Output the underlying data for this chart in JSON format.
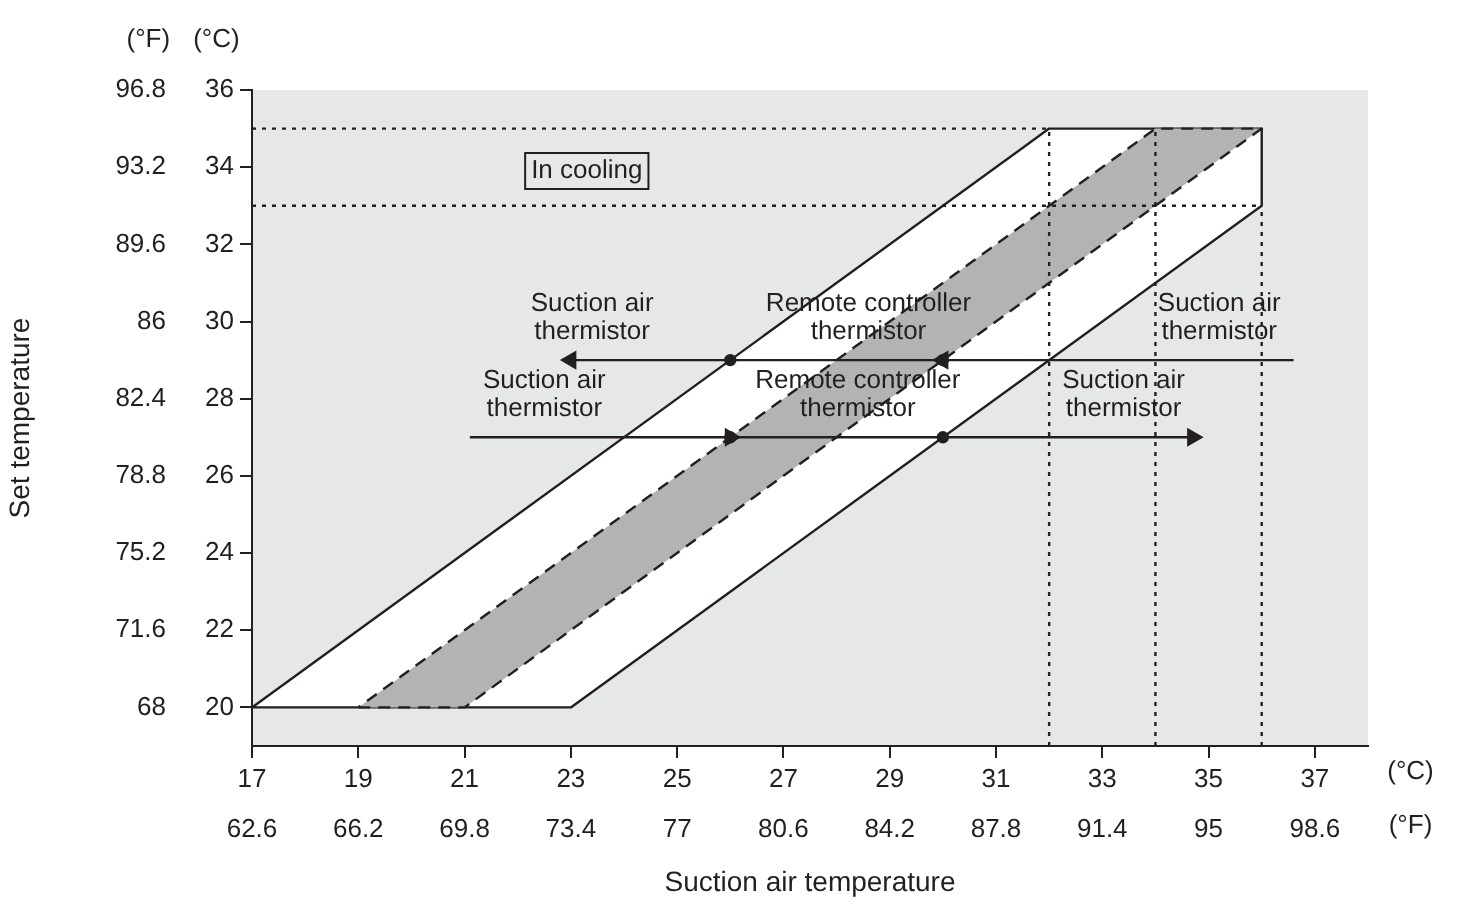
{
  "chart_data": {
    "type": "line",
    "xlabel": "Suction air temperature",
    "y2label": "Set temperature",
    "grid": false,
    "legend": false,
    "xlim": [
      17,
      38
    ],
    "xticks": [
      17,
      19,
      21,
      23,
      25,
      27,
      29,
      31,
      33,
      35,
      37
    ],
    "x2lim": [
      62.6,
      100.4
    ],
    "x2ticks": [
      62.6,
      66.2,
      69.8,
      73.4,
      77,
      80.6,
      84.2,
      87.8,
      91.4,
      95,
      98.6
    ],
    "ylim": [
      19,
      36
    ],
    "yticks": [
      20,
      22,
      24,
      26,
      28,
      30,
      32,
      34,
      36
    ],
    "y2lim": [
      66.2,
      96.8
    ],
    "y2ticks": [
      68,
      71.6,
      75.2,
      78.8,
      82.4,
      86,
      89.6,
      93.2,
      96.8
    ],
    "series": [
      {
        "type": "area",
        "color": "#ffffff",
        "x": [
          17,
          32,
          36,
          36,
          23,
          17
        ],
        "values": [
          20,
          35,
          35,
          33,
          20,
          20
        ]
      },
      {
        "type": "area",
        "color": "#b3b3b3",
        "line_style": "dashed",
        "x": [
          19,
          21,
          36,
          34,
          19
        ],
        "values": [
          20,
          20,
          35,
          35,
          20
        ]
      },
      {
        "type": "line",
        "color": "#231f20",
        "line_style": "dotted",
        "x": [
          17,
          32
        ],
        "values": [
          35,
          35
        ]
      },
      {
        "type": "line",
        "color": "#231f20",
        "line_style": "dotted",
        "x": [
          17,
          36
        ],
        "values": [
          33,
          33
        ]
      },
      {
        "type": "line",
        "color": "#231f20",
        "line_style": "dotted",
        "x": [
          32,
          32
        ],
        "values": [
          19,
          35
        ]
      },
      {
        "type": "line",
        "color": "#231f20",
        "line_style": "dotted",
        "x": [
          34,
          34
        ],
        "values": [
          19,
          35
        ]
      },
      {
        "type": "line",
        "color": "#231f20",
        "line_style": "dotted",
        "x": [
          36,
          36
        ],
        "values": [
          19,
          33
        ]
      },
      {
        "type": "line",
        "color": "#231f20",
        "marker": "triangle",
        "x": [
          36.6,
          30,
          23
        ],
        "values": [
          29,
          29,
          29
        ]
      },
      {
        "type": "line",
        "color": "#231f20",
        "marker": "triangle",
        "x": [
          21.1,
          26,
          34.7
        ],
        "values": [
          27,
          27,
          27
        ]
      },
      {
        "type": "scatter",
        "color": "#231f20",
        "marker": "circle",
        "x": [
          26,
          30,
          26,
          30
        ],
        "values": [
          29,
          29,
          27,
          27
        ]
      }
    ],
    "annotations": [
      "In cooling",
      "Suction air\nthermistor",
      "Remote controller\nthermistor",
      "Suction air\nthermistor",
      "Suction air\nthermistor",
      "Remote controller\nthermistor",
      "Suction air\nthermistor",
      "(°C)",
      "(°F)",
      "(°F)",
      "(°C)"
    ]
  }
}
